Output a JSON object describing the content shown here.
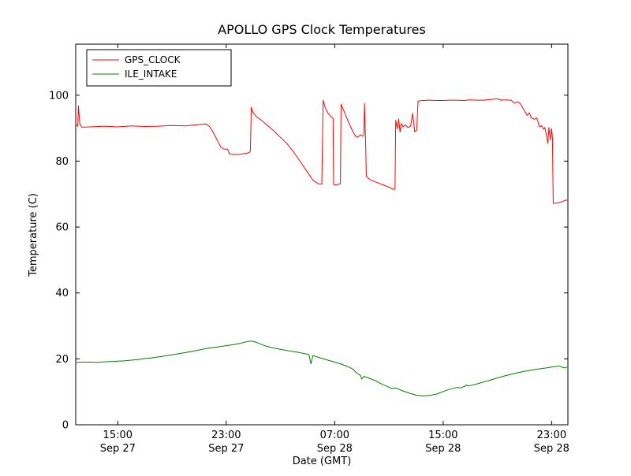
{
  "chart_data": {
    "type": "line",
    "title": "APOLLO GPS Clock Temperatures",
    "xlabel": "Date (GMT)",
    "ylabel": "Temperature (C)",
    "x_unit": "hours since Sep 27 00:00 GMT",
    "xlim": [
      11.9,
      48.2
    ],
    "ylim": [
      0,
      115.5
    ],
    "yticks": [
      0,
      20,
      40,
      60,
      80,
      100
    ],
    "xticks": [
      {
        "hour": 15,
        "time": "15:00",
        "date": "Sep 27"
      },
      {
        "hour": 23,
        "time": "23:00",
        "date": "Sep 27"
      },
      {
        "hour": 31,
        "time": "07:00",
        "date": "Sep 28"
      },
      {
        "hour": 39,
        "time": "15:00",
        "date": "Sep 28"
      },
      {
        "hour": 47,
        "time": "23:00",
        "date": "Sep 28"
      }
    ],
    "grid": false,
    "legend_position": "upper left",
    "series": [
      {
        "name": "GPS_CLOCK",
        "color": "#ff0000",
        "points": [
          [
            11.95,
            91.0
          ],
          [
            12.05,
            90.6
          ],
          [
            12.1,
            96.8
          ],
          [
            12.2,
            91.3
          ],
          [
            12.35,
            90.3
          ],
          [
            13,
            90.4
          ],
          [
            14,
            90.6
          ],
          [
            15,
            90.4
          ],
          [
            16,
            90.7
          ],
          [
            17,
            90.5
          ],
          [
            18,
            90.6
          ],
          [
            19,
            90.8
          ],
          [
            20,
            90.7
          ],
          [
            20.5,
            90.9
          ],
          [
            21,
            91.1
          ],
          [
            21.5,
            91.3
          ],
          [
            21.8,
            90.4
          ],
          [
            22.1,
            88.3
          ],
          [
            22.4,
            85.8
          ],
          [
            22.6,
            84.3
          ],
          [
            22.8,
            83.7
          ],
          [
            23.1,
            83.6
          ],
          [
            23.25,
            82.2
          ],
          [
            23.6,
            82.0
          ],
          [
            24.0,
            82.1
          ],
          [
            24.4,
            82.3
          ],
          [
            24.7,
            82.6
          ],
          [
            24.78,
            83.0
          ],
          [
            24.85,
            96.3
          ],
          [
            25.0,
            94.6
          ],
          [
            25.2,
            93.6
          ],
          [
            25.6,
            92.4
          ],
          [
            26.0,
            91.0
          ],
          [
            26.5,
            89.2
          ],
          [
            27.0,
            87.2
          ],
          [
            27.5,
            85.2
          ],
          [
            28.0,
            82.6
          ],
          [
            28.5,
            79.6
          ],
          [
            29.0,
            76.6
          ],
          [
            29.4,
            74.2
          ],
          [
            29.8,
            73.1
          ],
          [
            30.05,
            73.0
          ],
          [
            30.15,
            98.5
          ],
          [
            30.3,
            96.2
          ],
          [
            30.5,
            94.6
          ],
          [
            30.75,
            93.4
          ],
          [
            30.88,
            93.0
          ],
          [
            30.92,
            72.9
          ],
          [
            31.1,
            72.8
          ],
          [
            31.3,
            73.0
          ],
          [
            31.42,
            73.1
          ],
          [
            31.47,
            97.3
          ],
          [
            31.7,
            95.0
          ],
          [
            32.0,
            92.0
          ],
          [
            32.3,
            89.3
          ],
          [
            32.5,
            87.8
          ],
          [
            32.7,
            87.2
          ],
          [
            32.9,
            88.0
          ],
          [
            33.05,
            87.6
          ],
          [
            33.15,
            88.0
          ],
          [
            33.2,
            97.5
          ],
          [
            33.28,
            86.0
          ],
          [
            33.33,
            75.4
          ],
          [
            33.6,
            74.4
          ],
          [
            34.0,
            73.7
          ],
          [
            34.5,
            72.9
          ],
          [
            35.0,
            72.1
          ],
          [
            35.35,
            71.4
          ],
          [
            35.45,
            71.6
          ],
          [
            35.5,
            92.4
          ],
          [
            35.62,
            89.8
          ],
          [
            35.72,
            92.8
          ],
          [
            35.82,
            88.8
          ],
          [
            35.92,
            91.4
          ],
          [
            36.05,
            90.4
          ],
          [
            36.2,
            91.0
          ],
          [
            36.4,
            90.2
          ],
          [
            36.6,
            90.6
          ],
          [
            36.75,
            94.5
          ],
          [
            36.9,
            88.9
          ],
          [
            37.05,
            89.4
          ],
          [
            37.15,
            98.2
          ],
          [
            37.5,
            98.4
          ],
          [
            38.0,
            98.5
          ],
          [
            38.5,
            98.4
          ],
          [
            39.0,
            98.4
          ],
          [
            39.5,
            98.5
          ],
          [
            40.0,
            98.5
          ],
          [
            40.5,
            98.4
          ],
          [
            41.0,
            98.6
          ],
          [
            41.5,
            98.5
          ],
          [
            42.0,
            98.5
          ],
          [
            42.5,
            98.7
          ],
          [
            43.0,
            98.9
          ],
          [
            43.3,
            98.5
          ],
          [
            43.6,
            98.6
          ],
          [
            44.0,
            98.5
          ],
          [
            44.25,
            97.6
          ],
          [
            44.5,
            98.0
          ],
          [
            44.7,
            97.4
          ],
          [
            45.0,
            95.2
          ],
          [
            45.2,
            93.9
          ],
          [
            45.35,
            94.7
          ],
          [
            45.5,
            93.2
          ],
          [
            45.7,
            92.7
          ],
          [
            45.9,
            93.1
          ],
          [
            46.0,
            91.9
          ],
          [
            46.1,
            90.4
          ],
          [
            46.25,
            90.8
          ],
          [
            46.4,
            89.7
          ],
          [
            46.5,
            90.2
          ],
          [
            46.62,
            87.9
          ],
          [
            46.72,
            85.4
          ],
          [
            46.8,
            90.2
          ],
          [
            46.9,
            86.4
          ],
          [
            47.0,
            89.9
          ],
          [
            47.06,
            87.0
          ],
          [
            47.12,
            67.2
          ],
          [
            47.4,
            67.3
          ],
          [
            47.7,
            67.6
          ],
          [
            48.0,
            68.1
          ],
          [
            48.15,
            68.2
          ]
        ]
      },
      {
        "name": "ILE_INTAKE",
        "color": "#008000",
        "points": [
          [
            11.95,
            18.9
          ],
          [
            12.5,
            19.0
          ],
          [
            13.0,
            19.0
          ],
          [
            13.5,
            18.9
          ],
          [
            14.0,
            19.1
          ],
          [
            14.5,
            19.2
          ],
          [
            15.0,
            19.3
          ],
          [
            15.5,
            19.4
          ],
          [
            16.0,
            19.6
          ],
          [
            16.5,
            19.8
          ],
          [
            17.0,
            20.1
          ],
          [
            17.5,
            20.3
          ],
          [
            18.0,
            20.6
          ],
          [
            18.5,
            20.9
          ],
          [
            19.0,
            21.2
          ],
          [
            19.5,
            21.6
          ],
          [
            20.0,
            21.9
          ],
          [
            20.5,
            22.3
          ],
          [
            21.0,
            22.7
          ],
          [
            21.5,
            23.1
          ],
          [
            22.0,
            23.4
          ],
          [
            22.5,
            23.7
          ],
          [
            23.0,
            24.0
          ],
          [
            23.5,
            24.3
          ],
          [
            24.0,
            24.7
          ],
          [
            24.3,
            25.0
          ],
          [
            24.6,
            25.3
          ],
          [
            24.9,
            25.4
          ],
          [
            25.1,
            25.2
          ],
          [
            25.4,
            24.7
          ],
          [
            25.7,
            24.2
          ],
          [
            26.0,
            23.8
          ],
          [
            26.5,
            23.3
          ],
          [
            27.0,
            22.9
          ],
          [
            27.5,
            22.5
          ],
          [
            28.0,
            22.2
          ],
          [
            28.4,
            21.9
          ],
          [
            28.8,
            21.6
          ],
          [
            29.1,
            21.3
          ],
          [
            29.25,
            18.5
          ],
          [
            29.4,
            21.0
          ],
          [
            29.7,
            20.6
          ],
          [
            30.0,
            20.2
          ],
          [
            30.5,
            19.6
          ],
          [
            31.0,
            19.0
          ],
          [
            31.5,
            18.4
          ],
          [
            32.0,
            17.6
          ],
          [
            32.3,
            17.0
          ],
          [
            32.6,
            15.8
          ],
          [
            32.9,
            15.0
          ],
          [
            33.0,
            13.9
          ],
          [
            33.15,
            14.7
          ],
          [
            33.5,
            14.2
          ],
          [
            34.0,
            13.4
          ],
          [
            34.5,
            12.3
          ],
          [
            35.0,
            11.4
          ],
          [
            35.2,
            11.0
          ],
          [
            35.5,
            11.2
          ],
          [
            36.0,
            10.3
          ],
          [
            36.5,
            9.6
          ],
          [
            37.0,
            9.0
          ],
          [
            37.5,
            8.8
          ],
          [
            38.0,
            8.9
          ],
          [
            38.5,
            9.3
          ],
          [
            39.0,
            10.1
          ],
          [
            39.5,
            10.8
          ],
          [
            40.0,
            11.3
          ],
          [
            40.3,
            11.2
          ],
          [
            40.6,
            11.7
          ],
          [
            40.7,
            12.1
          ],
          [
            40.8,
            11.8
          ],
          [
            41.0,
            11.9
          ],
          [
            41.5,
            12.4
          ],
          [
            42.0,
            13.0
          ],
          [
            42.5,
            13.6
          ],
          [
            43.0,
            14.2
          ],
          [
            43.5,
            14.8
          ],
          [
            44.0,
            15.3
          ],
          [
            44.5,
            15.8
          ],
          [
            45.0,
            16.2
          ],
          [
            45.5,
            16.6
          ],
          [
            46.0,
            16.9
          ],
          [
            46.5,
            17.2
          ],
          [
            47.0,
            17.5
          ],
          [
            47.3,
            17.7
          ],
          [
            47.6,
            17.8
          ],
          [
            47.8,
            17.4
          ],
          [
            48.0,
            17.3
          ],
          [
            48.15,
            17.5
          ]
        ]
      }
    ]
  }
}
